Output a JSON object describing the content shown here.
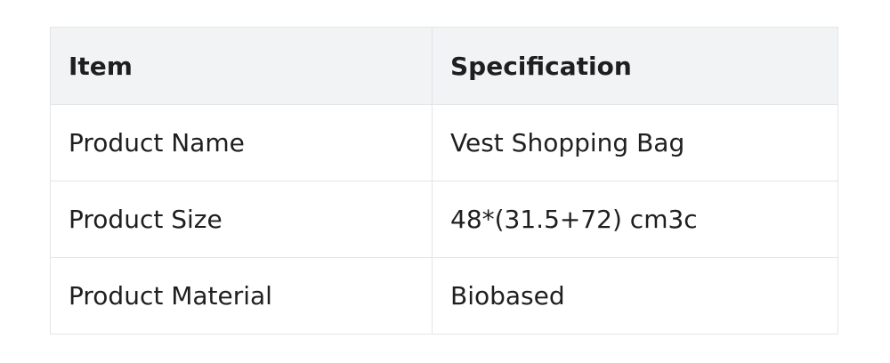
{
  "table": {
    "headers": [
      "Item",
      "Specification"
    ],
    "rows": [
      [
        "Product Name",
        "Vest Shopping Bag"
      ],
      [
        "Product Size",
        "48*(31.5+72) cm3c"
      ],
      [
        "Product Material",
        "Biobased"
      ]
    ]
  }
}
